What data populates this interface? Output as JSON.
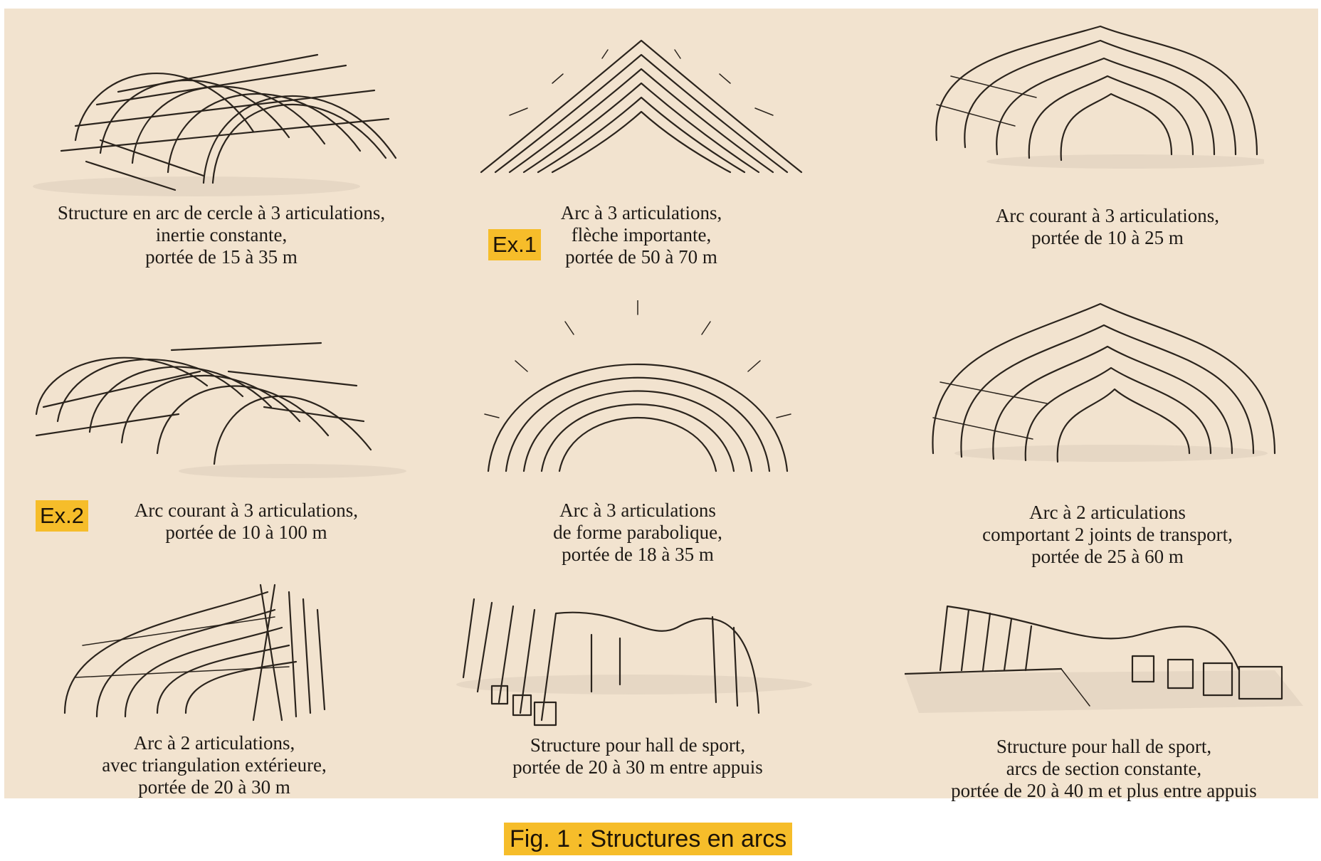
{
  "figure": {
    "title": "Fig. 1 : Structures en arcs"
  },
  "tags": {
    "ex1": "Ex.1",
    "ex2": "Ex.2"
  },
  "cells": [
    {
      "drawing_icon": "circular-three-hinged-arch-frame",
      "caption": [
        "Structure en arc de cercle à 3 articulations,",
        "inertie constante,",
        "portée de 15 à 35 m"
      ]
    },
    {
      "drawing_icon": "pointed-three-hinged-arch-frame",
      "caption": [
        "Arc à 3 articulations,",
        "flèche importante,",
        "portée de 50 à 70 m"
      ]
    },
    {
      "drawing_icon": "ogee-three-hinged-arch-frame",
      "caption": [
        "Arc courant à 3 articulations,",
        "portée de 10 à 25 m"
      ]
    },
    {
      "drawing_icon": "barrel-three-hinged-arch-frame",
      "caption": [
        "Arc courant à 3 articulations,",
        "portée de 10 à 100 m"
      ]
    },
    {
      "drawing_icon": "parabolic-three-hinged-arch-frame",
      "caption": [
        "Arc à 3 articulations",
        "de forme parabolique,",
        "portée de 18 à 35 m"
      ]
    },
    {
      "drawing_icon": "two-hinged-arch-with-transport-joints",
      "caption": [
        "Arc à 2 articulations",
        "comportant 2 joints de transport,",
        "portée de 25 à 60 m"
      ]
    },
    {
      "drawing_icon": "two-hinged-arch-with-external-triangulation",
      "caption": [
        "Arc à 2 articulations,",
        "avec triangulation extérieure,",
        "portée de 20 à 30 m"
      ]
    },
    {
      "drawing_icon": "sport-hall-arch-structure",
      "caption": [
        "Structure pour hall de sport,",
        "portée de 20 à 30 m entre appuis"
      ]
    },
    {
      "drawing_icon": "sport-hall-constant-section-arches",
      "caption": [
        "Structure pour hall de sport,",
        "arcs de section constante,",
        "portée de 20 à 40 m et plus entre appuis"
      ]
    }
  ]
}
